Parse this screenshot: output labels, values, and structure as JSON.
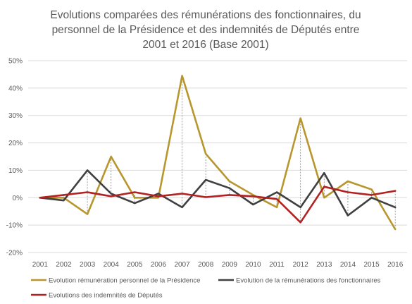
{
  "chart_data": {
    "type": "line",
    "title": [
      "Evolutions comparées des rémunérations des fonctionnaires, du",
      "personnel de la Présidence et des indemnités de Députés entre",
      "2001 et 2016 (Base 2001)"
    ],
    "xlabel": "",
    "ylabel": "",
    "ylim": [
      -0.2,
      0.5
    ],
    "y_ticks": [
      0.5,
      0.4,
      0.3,
      0.2,
      0.1,
      0,
      -0.1,
      -0.2
    ],
    "y_tick_labels": [
      "50%",
      "40%",
      "30%",
      "20%",
      "10%",
      "0%",
      "-10%",
      "-20%"
    ],
    "categories": [
      "2001",
      "2002",
      "2003",
      "2004",
      "2005",
      "2006",
      "2007",
      "2008",
      "2009",
      "2010",
      "2011",
      "2012",
      "2013",
      "2014",
      "2015",
      "2016"
    ],
    "grid": true,
    "legend_position": "bottom",
    "series": [
      {
        "name": "Evolution rémunération personnel de la Présidence",
        "color": "#B8962E",
        "values": [
          0,
          0,
          -0.06,
          0.15,
          0,
          0,
          0.445,
          0.16,
          0.06,
          0.01,
          -0.035,
          0.29,
          0,
          0.06,
          0.03,
          -0.115
        ]
      },
      {
        "name": "Evolution de la rémunérations des fonctionnaires",
        "color": "#404040",
        "values": [
          0,
          -0.01,
          0.1,
          0.015,
          -0.02,
          0.015,
          -0.035,
          0.065,
          0.035,
          -0.025,
          0.02,
          -0.035,
          0.09,
          -0.065,
          0,
          -0.035
        ]
      },
      {
        "name": "Evolutions des indemnités de Députés",
        "color": "#B22222",
        "values": [
          0,
          0.01,
          0.02,
          0.005,
          0.02,
          0.005,
          0.015,
          0.002,
          0.01,
          0.005,
          -0.005,
          -0.09,
          0.04,
          0.02,
          0.01,
          0.025
        ]
      }
    ]
  }
}
